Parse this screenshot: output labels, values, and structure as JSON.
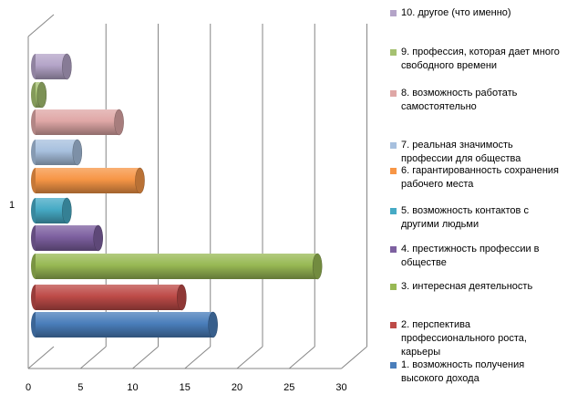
{
  "chart_data": {
    "type": "bar",
    "orientation": "horizontal",
    "style": "3d-cylinder",
    "category": "1",
    "xlim": [
      0,
      30
    ],
    "x_ticks": [
      "0",
      "5",
      "10",
      "15",
      "20",
      "25",
      "30"
    ],
    "grid": true,
    "legend_position": "right",
    "series": [
      {
        "name": "1. возможность получения высокого дохода",
        "value": 17,
        "color": "#4a7ebb"
      },
      {
        "name": "2. перспектива профессионального роста, карьеры",
        "value": 14,
        "color": "#be4b48"
      },
      {
        "name": "3. интересная деятельность",
        "value": 27,
        "color": "#98b954"
      },
      {
        "name": "4. престижность профессии в обществе",
        "value": 6,
        "color": "#7d60a0"
      },
      {
        "name": "5. возможность контактов с другими людьми",
        "value": 3,
        "color": "#46aac5"
      },
      {
        "name": "6. гарантированность сохранения рабочего места",
        "value": 10,
        "color": "#f79646"
      },
      {
        "name": "7. реальная значимость профессии для общества",
        "value": 4,
        "color": "#a7c0de"
      },
      {
        "name": "8. возможность работать самостоятельно",
        "value": 8,
        "color": "#dfa7a6"
      },
      {
        "name": "9. профессия, которая дает много свободного времени",
        "value": 0.6,
        "color": "#a5c171"
      },
      {
        "name": "10. другое (что именно)",
        "value": 3,
        "color": "#b4a4c8"
      }
    ]
  }
}
